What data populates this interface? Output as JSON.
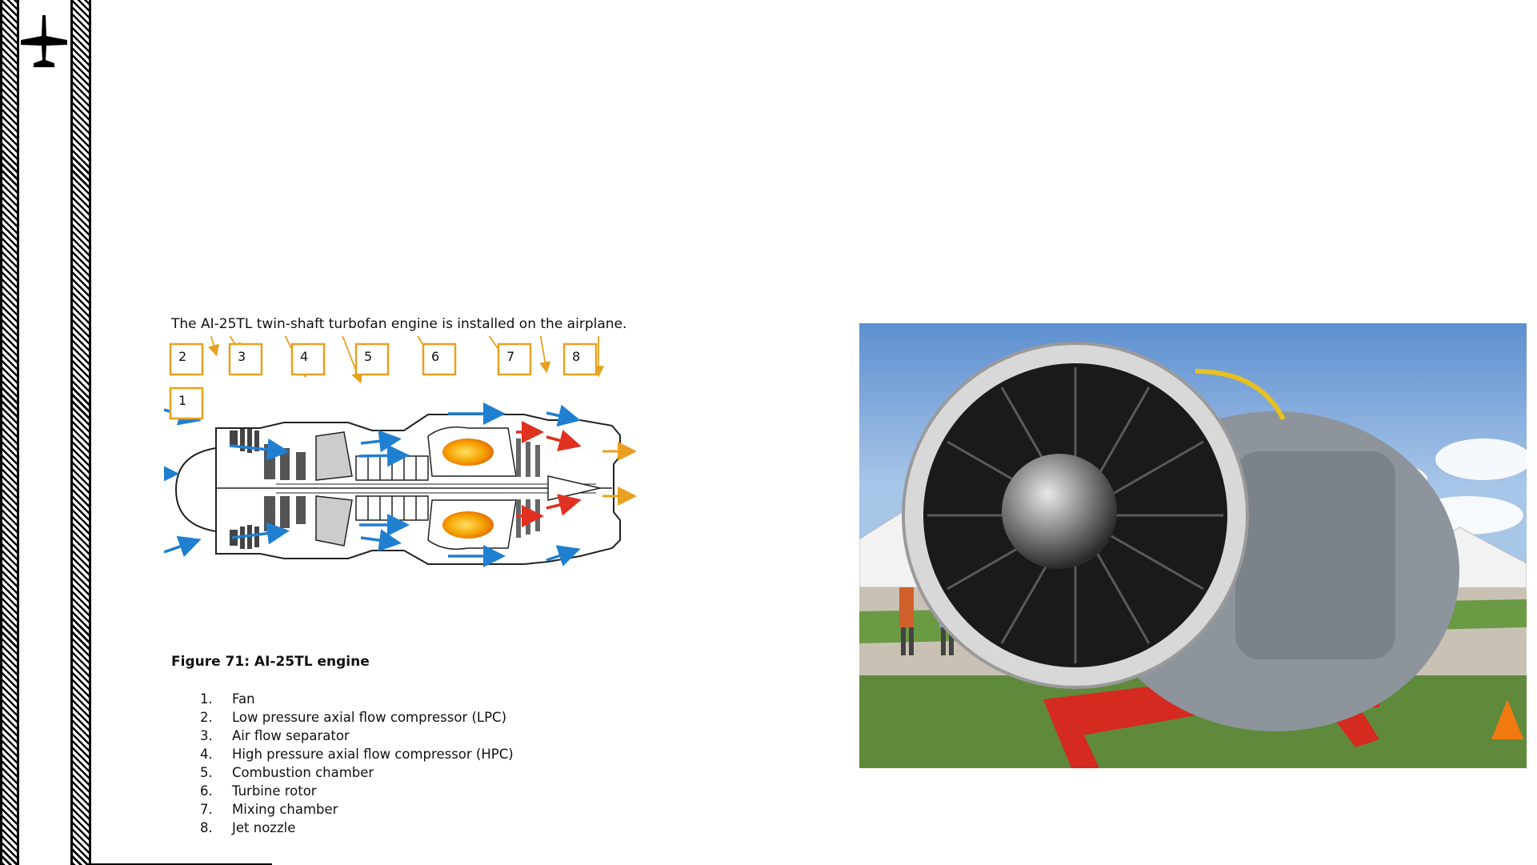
{
  "intro_text": "The AI-25TL twin-shaft turbofan engine is installed on the airplane.",
  "diagram": {
    "callouts": [
      "1",
      "2",
      "3",
      "4",
      "5",
      "6",
      "7",
      "8"
    ]
  },
  "figure_caption": "Figure 71: AI-25TL engine",
  "parts": [
    {
      "num": "1.",
      "label": "Fan"
    },
    {
      "num": "2.",
      "label": "Low pressure axial flow compressor (LPC)"
    },
    {
      "num": "3.",
      "label": "Air flow separator"
    },
    {
      "num": "4.",
      "label": "High pressure axial flow compressor (HPC)"
    },
    {
      "num": "5.",
      "label": "Combustion chamber"
    },
    {
      "num": "6.",
      "label": "Turbine rotor"
    },
    {
      "num": "7.",
      "label": "Mixing chamber"
    },
    {
      "num": "8.",
      "label": "Jet nozzle"
    }
  ],
  "colors": {
    "callout": "#e8a020",
    "airflow": "#1f7fd0",
    "hot_flow": "#e03020",
    "flame": "#f5a000"
  }
}
